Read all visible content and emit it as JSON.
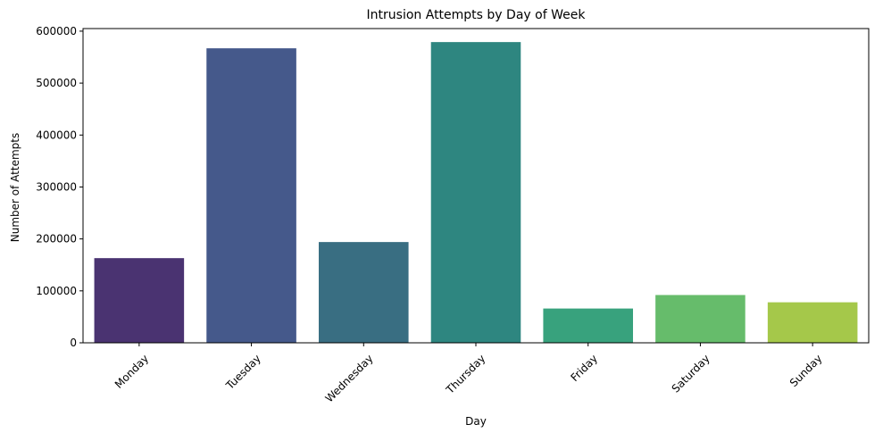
{
  "chart_data": {
    "type": "bar",
    "title": "Intrusion Attempts by Day of Week",
    "xlabel": "Day",
    "ylabel": "Number of Attempts",
    "categories": [
      "Monday",
      "Tuesday",
      "Wednesday",
      "Thursday",
      "Friday",
      "Saturday",
      "Sunday"
    ],
    "values": [
      163000,
      567000,
      194000,
      579000,
      66000,
      92000,
      78000
    ],
    "colors": [
      "#4a3371",
      "#45598b",
      "#396e82",
      "#2e8680",
      "#38a27d",
      "#66bc6b",
      "#a5c84a"
    ],
    "ylim": [
      0,
      605000
    ],
    "yticks": [
      0,
      100000,
      200000,
      300000,
      400000,
      500000,
      600000
    ],
    "ytick_labels": [
      "0",
      "100000",
      "200000",
      "300000",
      "400000",
      "500000",
      "600000"
    ],
    "xtick_rotation_deg": 45,
    "grid": false,
    "legend": "none"
  }
}
